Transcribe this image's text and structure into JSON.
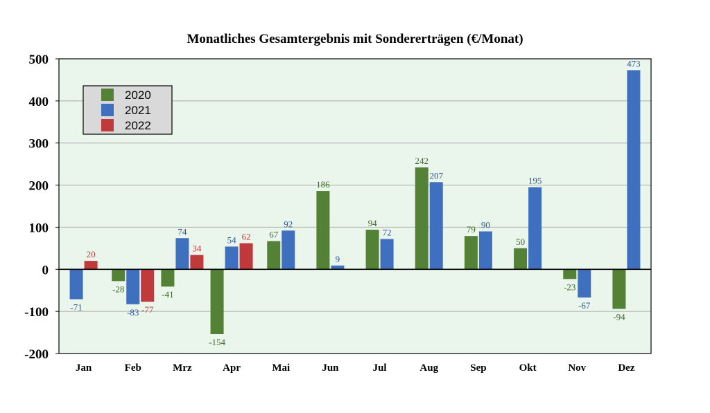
{
  "chart_data": {
    "type": "bar",
    "title": "Monatliches Gesamtergebnis mit Sondererträgen (€/Monat)",
    "xlabel": "",
    "ylabel": "",
    "ylim": [
      -200,
      500
    ],
    "yticks": [
      -200,
      -100,
      0,
      100,
      200,
      300,
      400,
      500
    ],
    "grid": true,
    "legend_position": "top-left",
    "background_color": "#eaf5ec",
    "categories": [
      "Jan",
      "Feb",
      "Mrz",
      "Apr",
      "Mai",
      "Jun",
      "Jul",
      "Aug",
      "Sep",
      "Okt",
      "Nov",
      "Dez"
    ],
    "series": [
      {
        "name": "2020",
        "color": "#538135",
        "label_color": "#3d6b27",
        "values": [
          null,
          -28,
          -41,
          -154,
          67,
          186,
          94,
          242,
          79,
          50,
          -23,
          -94
        ]
      },
      {
        "name": "2021",
        "color": "#3f6fbf",
        "label_color": "#2f5597",
        "values": [
          -71,
          -83,
          74,
          54,
          92,
          9,
          72,
          207,
          90,
          195,
          -67,
          473
        ]
      },
      {
        "name": "2022",
        "color": "#c0393b",
        "label_color": "#c0393b",
        "values": [
          20,
          -77,
          34,
          62,
          null,
          null,
          null,
          null,
          null,
          null,
          null,
          null
        ]
      }
    ]
  }
}
